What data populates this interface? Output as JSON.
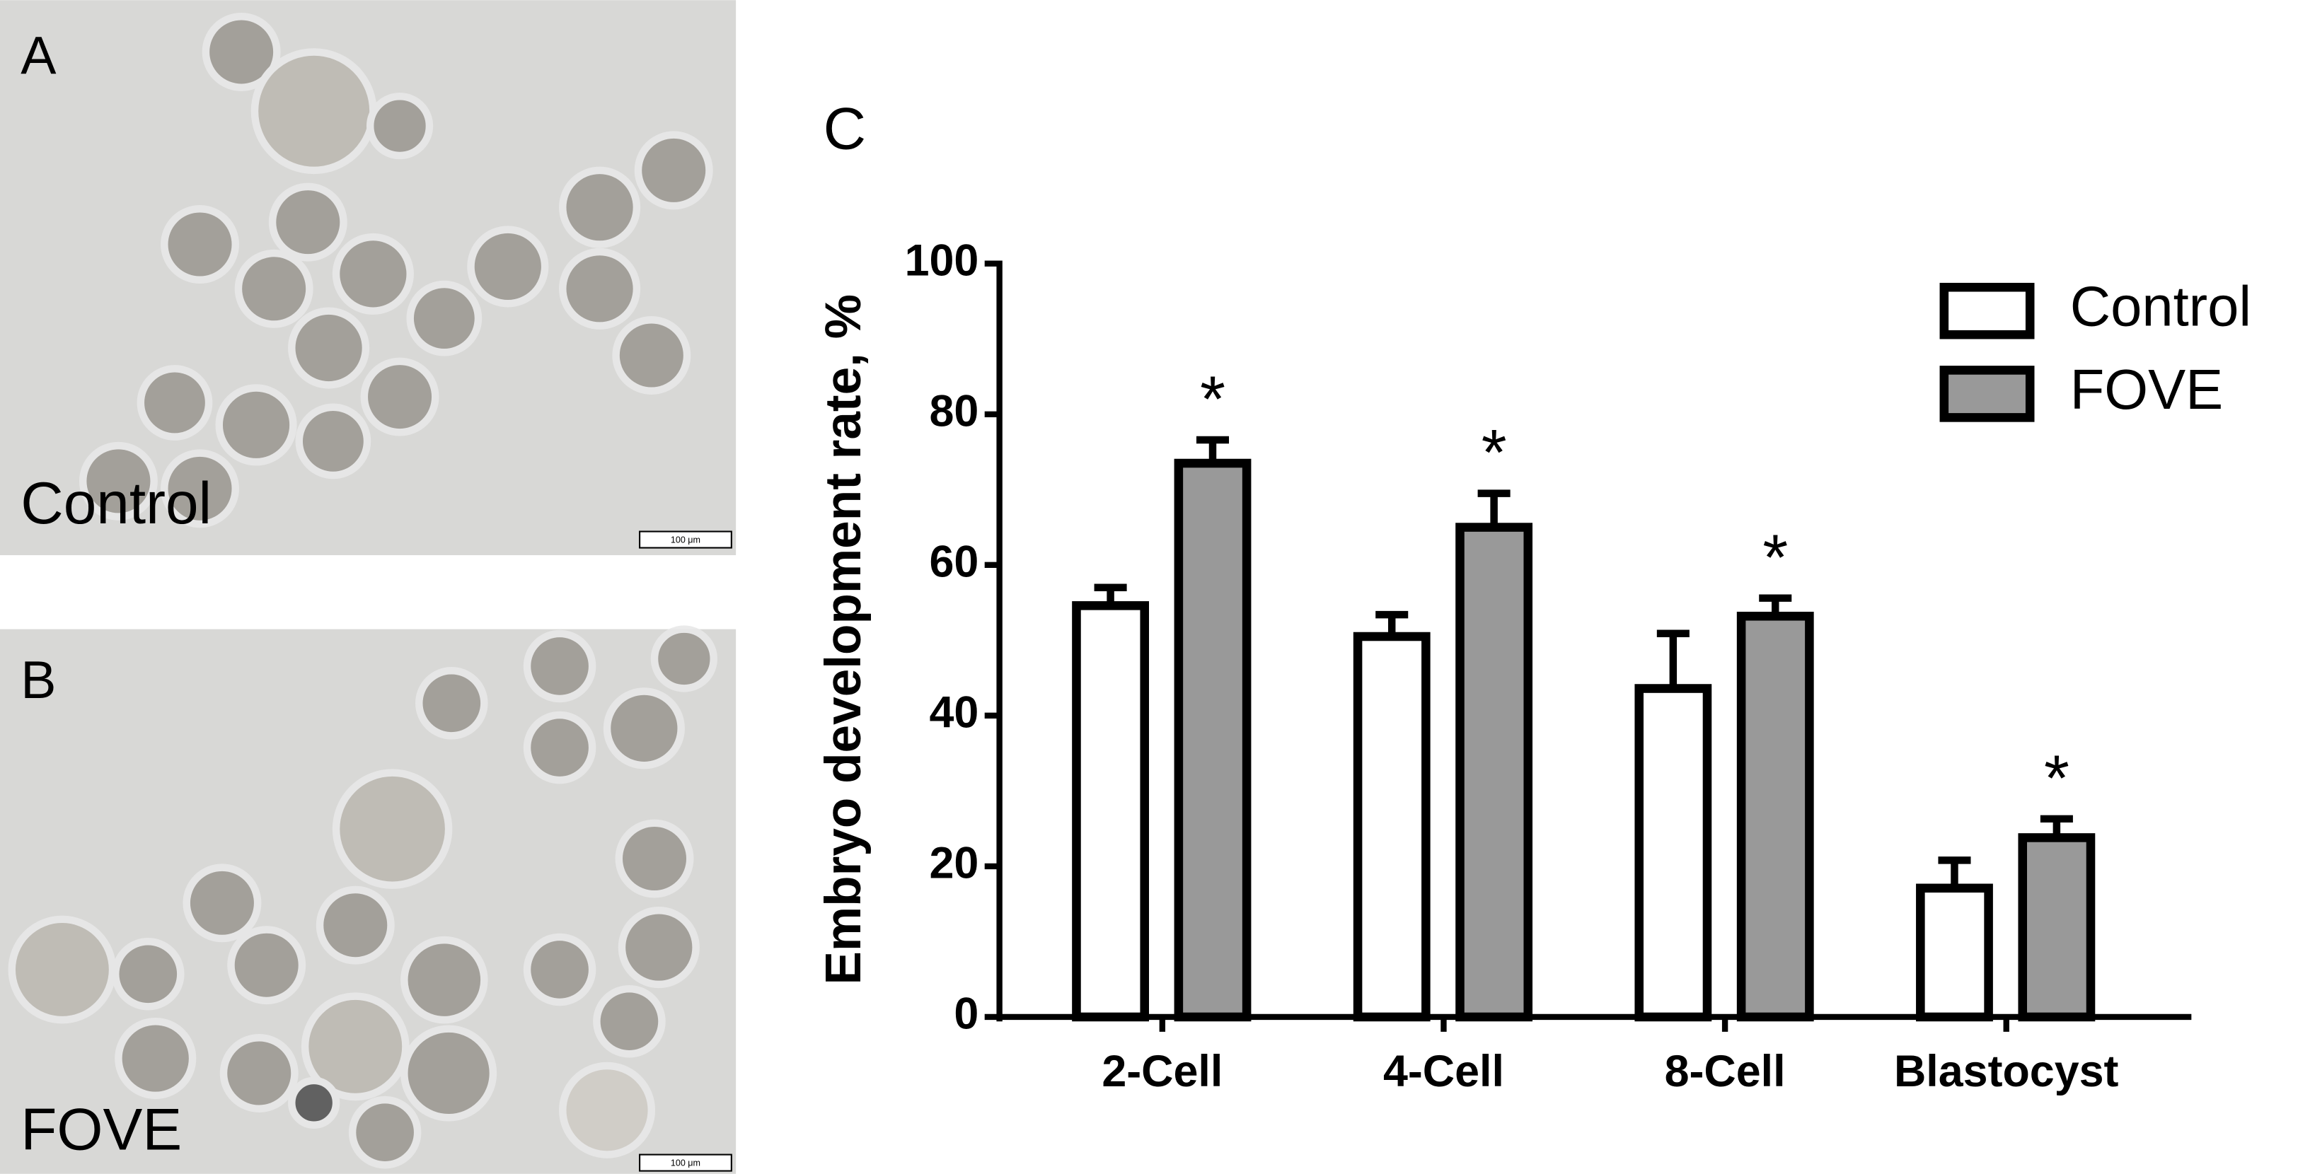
{
  "panels": [
    {
      "label": "A",
      "caption": "Control",
      "scale_bar": "100 μm"
    },
    {
      "label": "B",
      "caption": "FOVE",
      "scale_bar": "100 μm"
    }
  ],
  "chart_data": {
    "type": "bar",
    "panel_label": "C",
    "y_label": "Embryo development rate, %",
    "categories": [
      "2-Cell",
      "4-Cell",
      "8-Cell",
      "Blastocyst"
    ],
    "series": [
      {
        "name": "Control",
        "color": "#ffffff",
        "values": [
          54.6,
          50.5,
          43.6,
          17.1
        ],
        "errors": [
          2.4,
          2.9,
          7.3,
          3.7
        ]
      },
      {
        "name": "FOVE",
        "color": "#999999",
        "values": [
          73.5,
          65,
          53.2,
          23.8
        ],
        "errors": [
          3.1,
          4.5,
          2.4,
          2.5
        ],
        "annotations": [
          "*",
          "*",
          "*",
          "*"
        ]
      }
    ],
    "ylim": [
      0,
      100
    ],
    "yticks": [
      0,
      20,
      40,
      60,
      80,
      100
    ]
  }
}
